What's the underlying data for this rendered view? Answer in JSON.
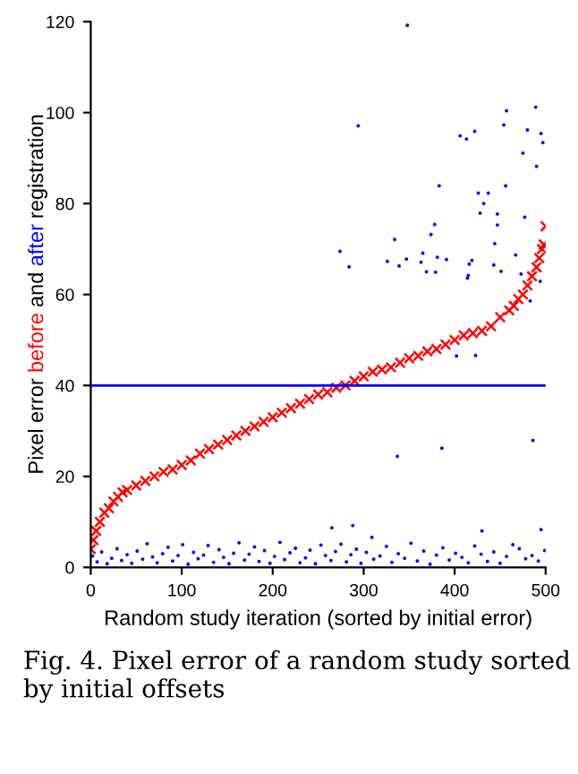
{
  "chart_data": {
    "type": "scatter",
    "xlabel": "Random study iteration (sorted by initial error)",
    "ylabel": "Pixel error before and after registration",
    "xlim": [
      0,
      500
    ],
    "ylim": [
      0,
      120
    ],
    "xticks": [
      0,
      100,
      200,
      300,
      400,
      500
    ],
    "yticks": [
      0,
      20,
      40,
      60,
      80,
      100,
      120
    ],
    "grid": false,
    "ref_lines": [
      {
        "axis": "y",
        "value": 40,
        "color": "#0000ff"
      }
    ],
    "series": [
      {
        "color": "#ff0000",
        "marker": "cross",
        "x": [
          0,
          3,
          6,
          10,
          15,
          20,
          25,
          30,
          35,
          40,
          50,
          60,
          70,
          80,
          90,
          100,
          110,
          120,
          130,
          140,
          150,
          160,
          170,
          180,
          190,
          200,
          210,
          220,
          230,
          240,
          250,
          260,
          270,
          280,
          290,
          300,
          310,
          320,
          330,
          340,
          350,
          360,
          370,
          380,
          390,
          400,
          410,
          420,
          430,
          440,
          450,
          460,
          465,
          470,
          475,
          480,
          485,
          490,
          493,
          496,
          498,
          500
        ],
        "values": [
          4,
          6,
          8,
          10,
          12,
          13,
          14.5,
          15.5,
          16.5,
          17,
          18,
          19,
          20,
          21,
          21.5,
          22.5,
          23.5,
          25,
          26,
          27,
          28,
          29,
          30,
          31,
          32,
          33,
          34,
          35,
          36,
          37,
          38,
          38.5,
          39.5,
          40,
          41,
          42,
          43,
          43.5,
          44,
          45,
          46,
          46.5,
          47.5,
          48,
          49,
          50,
          51,
          51.5,
          52,
          53,
          55,
          56.5,
          57.5,
          59,
          60,
          62,
          64,
          66,
          68,
          70,
          71,
          75
        ]
      },
      {
        "color": "#0000ff",
        "marker": "circle",
        "x": [
          348,
          294,
          406,
          413,
          422,
          457,
          454,
          489,
          480,
          495,
          497,
          475,
          490,
          383,
          456,
          426,
          437,
          432,
          428,
          447,
          477,
          378,
          447,
          374,
          334,
          274,
          444,
          365,
          467,
          381,
          391,
          326,
          347,
          363,
          419,
          416,
          443,
          284,
          339,
          451,
          369,
          379,
          473,
          415,
          414,
          494,
          483,
          402,
          423,
          337,
          386,
          486,
          265,
          288,
          430,
          495,
          309,
          2,
          7,
          12,
          18,
          23,
          29,
          34,
          40,
          45,
          51,
          57,
          62,
          68,
          73,
          79,
          85,
          90,
          96,
          101,
          107,
          113,
          118,
          124,
          129,
          135,
          141,
          146,
          152,
          157,
          163,
          169,
          174,
          180,
          185,
          191,
          197,
          202,
          208,
          213,
          219,
          225,
          230,
          236,
          241,
          247,
          253,
          258,
          264,
          269,
          275,
          281,
          286,
          292,
          297,
          303,
          311,
          318,
          325,
          331,
          338,
          345,
          352,
          359,
          366,
          373,
          380,
          387,
          394,
          401,
          408,
          415,
          422,
          429,
          436,
          443,
          450,
          457,
          464,
          471,
          478,
          485,
          492,
          499
        ],
        "values": [
          119.2,
          97.1,
          94.9,
          94.2,
          95.9,
          100.4,
          97.3,
          101.2,
          96.2,
          95.4,
          93.4,
          91.1,
          88.2,
          83.9,
          83.9,
          82.3,
          82.3,
          80.0,
          77.9,
          77.7,
          77.0,
          75.4,
          75.3,
          73.2,
          72.1,
          69.5,
          71.2,
          69.1,
          68.7,
          68.2,
          67.7,
          67.3,
          67.8,
          67.1,
          67.5,
          66.7,
          66.5,
          66.1,
          66.3,
          65.1,
          65.0,
          64.9,
          64.5,
          64.2,
          63.6,
          62.9,
          58.6,
          46.5,
          46.6,
          24.4,
          26.2,
          27.9,
          8.7,
          9.2,
          8.0,
          8.3,
          6.6,
          2.5,
          1.2,
          3.4,
          0.8,
          2.0,
          4.1,
          1.5,
          2.8,
          0.9,
          3.6,
          1.8,
          5.2,
          2.3,
          1.0,
          3.0,
          4.4,
          1.4,
          2.6,
          5.0,
          0.7,
          3.3,
          1.9,
          2.7,
          4.8,
          1.1,
          3.9,
          2.2,
          0.8,
          3.1,
          5.4,
          1.6,
          2.9,
          4.5,
          1.3,
          3.7,
          0.9,
          2.4,
          5.5,
          1.7,
          3.2,
          4.2,
          1.0,
          2.1,
          3.8,
          0.8,
          4.9,
          2.6,
          1.5,
          3.5,
          5.1,
          1.2,
          2.8,
          4.0,
          0.9,
          3.3,
          1.8,
          2.5,
          4.6,
          1.1,
          3.0,
          2.0,
          5.3,
          1.4,
          3.6,
          0.7,
          2.7,
          4.3,
          1.6,
          3.1,
          2.2,
          1.0,
          4.7,
          2.9,
          1.3,
          3.4,
          0.9,
          2.4,
          5.0,
          4.1,
          1.9,
          2.6,
          1.4,
          3.7
        ]
      }
    ],
    "annotations": [
      "Fig. 4. Pixel error of a random study sorted by initial offsets"
    ]
  }
}
